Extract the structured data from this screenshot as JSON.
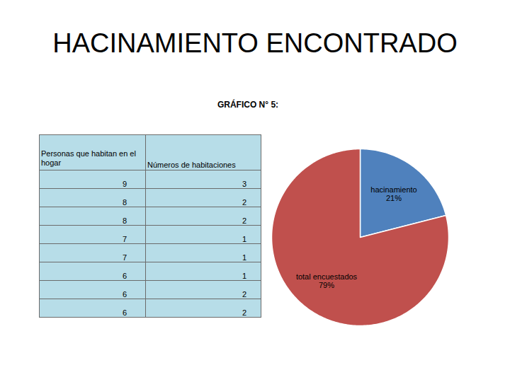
{
  "title": "HACINAMIENTO ENCONTRADO",
  "subtitle": "GRÁFICO N° 5:",
  "table": {
    "headers": [
      "Personas que habitan en el hogar",
      "Números de habitaciones"
    ],
    "rows": [
      [
        9,
        3
      ],
      [
        8,
        2
      ],
      [
        8,
        2
      ],
      [
        7,
        1
      ],
      [
        7,
        1
      ],
      [
        6,
        1
      ],
      [
        6,
        2
      ],
      [
        6,
        2
      ]
    ]
  },
  "chart_data": {
    "type": "pie",
    "categories": [
      "hacinamiento",
      "total encuestados"
    ],
    "values": [
      21,
      79
    ],
    "value_labels": [
      "21%",
      "79%"
    ],
    "colors": [
      "#4f81bd",
      "#c0504d"
    ],
    "data_labels": true
  }
}
